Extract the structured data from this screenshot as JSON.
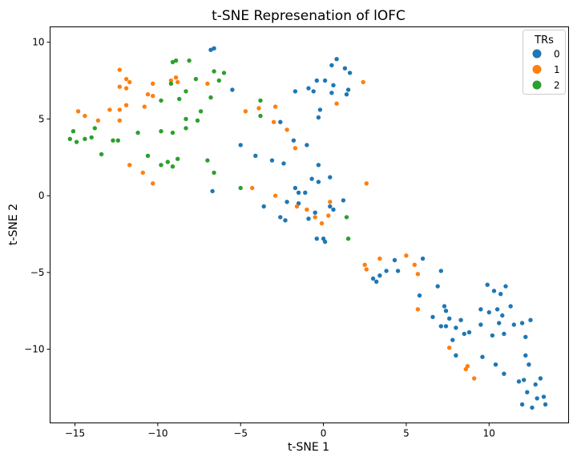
{
  "chart_data": {
    "type": "scatter",
    "title": "t-SNE Represenation of lOFC",
    "xlabel": "t-SNE 1",
    "ylabel": "t-SNE 2",
    "xlim": [
      -16.5,
      14.8
    ],
    "ylim": [
      -14.8,
      11
    ],
    "xticks": [
      -15,
      -10,
      -5,
      0,
      5,
      10
    ],
    "xtick_labels": [
      "−15",
      "−10",
      "−5",
      "0",
      "5",
      "10"
    ],
    "yticks": [
      10,
      5,
      0,
      -5,
      -10
    ],
    "ytick_labels": [
      "10",
      "5",
      "0",
      "−5",
      "−10"
    ],
    "grid": false,
    "legend": {
      "title": "TRs",
      "placement": "top-right"
    },
    "series": [
      {
        "name": "0",
        "color": "#1f77b4",
        "points": [
          [
            -6.8,
            9.5
          ],
          [
            -6.6,
            9.6
          ],
          [
            -5.5,
            6.9
          ],
          [
            -6.7,
            0.3
          ],
          [
            -1.7,
            6.8
          ],
          [
            -0.9,
            7.0
          ],
          [
            -0.6,
            6.8
          ],
          [
            -0.4,
            7.5
          ],
          [
            -0.2,
            5.6
          ],
          [
            -0.3,
            5.1
          ],
          [
            0.1,
            7.5
          ],
          [
            0.5,
            8.5
          ],
          [
            0.8,
            8.9
          ],
          [
            0.6,
            7.2
          ],
          [
            0.5,
            6.7
          ],
          [
            1.3,
            8.3
          ],
          [
            1.6,
            8.0
          ],
          [
            1.4,
            6.6
          ],
          [
            1.5,
            6.9
          ],
          [
            -5.0,
            3.3
          ],
          [
            -4.1,
            2.6
          ],
          [
            -3.1,
            2.3
          ],
          [
            -2.6,
            4.8
          ],
          [
            -2.4,
            2.1
          ],
          [
            -1.8,
            3.6
          ],
          [
            -1.0,
            3.3
          ],
          [
            -0.7,
            1.1
          ],
          [
            -0.3,
            2.0
          ],
          [
            -0.3,
            0.9
          ],
          [
            0.4,
            1.2
          ],
          [
            -3.6,
            -0.7
          ],
          [
            -2.6,
            -1.4
          ],
          [
            -2.3,
            -1.6
          ],
          [
            -1.7,
            0.5
          ],
          [
            -1.5,
            0.2
          ],
          [
            -1.5,
            -0.5
          ],
          [
            -2.2,
            -0.4
          ],
          [
            -1.1,
            0.2
          ],
          [
            -0.9,
            -1.5
          ],
          [
            -0.5,
            -1.1
          ],
          [
            -0.4,
            -2.8
          ],
          [
            0.0,
            -2.8
          ],
          [
            0.1,
            -3.0
          ],
          [
            0.4,
            -0.7
          ],
          [
            0.6,
            -0.9
          ],
          [
            1.2,
            -0.3
          ],
          [
            3.0,
            -5.4
          ],
          [
            3.2,
            -5.6
          ],
          [
            3.4,
            -5.2
          ],
          [
            3.8,
            -4.9
          ],
          [
            4.3,
            -4.2
          ],
          [
            4.5,
            -4.9
          ],
          [
            6.0,
            -4.1
          ],
          [
            5.8,
            -6.5
          ],
          [
            6.6,
            -7.9
          ],
          [
            6.9,
            -5.9
          ],
          [
            7.1,
            -4.9
          ],
          [
            7.3,
            -7.2
          ],
          [
            7.4,
            -7.5
          ],
          [
            7.1,
            -8.5
          ],
          [
            7.4,
            -8.5
          ],
          [
            7.6,
            -8.0
          ],
          [
            7.8,
            -9.4
          ],
          [
            8.0,
            -8.6
          ],
          [
            8.0,
            -10.4
          ],
          [
            8.3,
            -8.1
          ],
          [
            8.5,
            -9.0
          ],
          [
            8.8,
            -8.9
          ],
          [
            9.5,
            -8.4
          ],
          [
            9.5,
            -7.4
          ],
          [
            9.6,
            -10.5
          ],
          [
            9.9,
            -5.8
          ],
          [
            10.0,
            -7.6
          ],
          [
            10.2,
            -9.1
          ],
          [
            10.3,
            -6.2
          ],
          [
            10.4,
            -11.0
          ],
          [
            10.5,
            -7.4
          ],
          [
            10.6,
            -8.3
          ],
          [
            10.7,
            -6.4
          ],
          [
            10.8,
            -7.8
          ],
          [
            10.9,
            -9.0
          ],
          [
            11.0,
            -5.9
          ],
          [
            10.9,
            -11.6
          ],
          [
            11.3,
            -7.2
          ],
          [
            11.5,
            -8.4
          ],
          [
            12.0,
            -8.3
          ],
          [
            11.8,
            -12.1
          ],
          [
            12.0,
            -13.6
          ],
          [
            12.1,
            -12.0
          ],
          [
            12.2,
            -9.2
          ],
          [
            12.2,
            -10.4
          ],
          [
            12.3,
            -12.8
          ],
          [
            12.4,
            -11.0
          ],
          [
            12.5,
            -8.1
          ],
          [
            12.6,
            -13.8
          ],
          [
            12.8,
            -12.3
          ],
          [
            12.9,
            -13.2
          ],
          [
            13.1,
            -11.9
          ],
          [
            13.3,
            -13.1
          ],
          [
            13.4,
            -13.6
          ]
        ]
      },
      {
        "name": "1",
        "color": "#ff7f0e",
        "points": [
          [
            -12.3,
            8.2
          ],
          [
            -11.9,
            7.6
          ],
          [
            -11.7,
            7.4
          ],
          [
            -12.3,
            7.1
          ],
          [
            -11.9,
            7.0
          ],
          [
            -10.6,
            6.6
          ],
          [
            -10.3,
            7.3
          ],
          [
            -10.3,
            6.5
          ],
          [
            -9.2,
            7.5
          ],
          [
            -8.9,
            7.7
          ],
          [
            -8.8,
            7.4
          ],
          [
            -7.0,
            7.3
          ],
          [
            -14.8,
            5.5
          ],
          [
            -14.4,
            5.2
          ],
          [
            -13.6,
            4.9
          ],
          [
            -12.9,
            5.6
          ],
          [
            -12.3,
            5.6
          ],
          [
            -11.9,
            5.9
          ],
          [
            -10.8,
            5.8
          ],
          [
            -12.3,
            4.9
          ],
          [
            -11.7,
            2.0
          ],
          [
            -10.9,
            1.5
          ],
          [
            -10.3,
            0.8
          ],
          [
            -4.7,
            5.5
          ],
          [
            -3.9,
            5.7
          ],
          [
            -2.9,
            5.8
          ],
          [
            -3.0,
            4.8
          ],
          [
            -2.2,
            4.3
          ],
          [
            -1.7,
            3.1
          ],
          [
            -4.3,
            0.5
          ],
          [
            -2.9,
            0.0
          ],
          [
            -1.6,
            -0.7
          ],
          [
            -1.0,
            -0.9
          ],
          [
            -0.5,
            -1.4
          ],
          [
            -0.1,
            -1.8
          ],
          [
            0.3,
            -1.3
          ],
          [
            0.4,
            -0.4
          ],
          [
            0.8,
            6.0
          ],
          [
            2.4,
            7.4
          ],
          [
            2.6,
            0.8
          ],
          [
            2.5,
            -4.5
          ],
          [
            2.6,
            -4.8
          ],
          [
            3.4,
            -4.1
          ],
          [
            5.0,
            -3.9
          ],
          [
            5.5,
            -4.5
          ],
          [
            5.7,
            -5.1
          ],
          [
            5.7,
            -7.4
          ],
          [
            7.6,
            -9.9
          ],
          [
            8.7,
            -11.1
          ],
          [
            8.6,
            -11.3
          ],
          [
            9.1,
            -11.9
          ]
        ]
      },
      {
        "name": "2",
        "color": "#2ca02c",
        "points": [
          [
            -9.1,
            8.7
          ],
          [
            -8.9,
            8.8
          ],
          [
            -8.1,
            8.8
          ],
          [
            -6.6,
            8.1
          ],
          [
            -6.0,
            8.0
          ],
          [
            -7.7,
            7.6
          ],
          [
            -6.3,
            7.5
          ],
          [
            -9.2,
            7.3
          ],
          [
            -8.3,
            6.8
          ],
          [
            -6.8,
            6.4
          ],
          [
            -7.4,
            5.5
          ],
          [
            -9.8,
            6.2
          ],
          [
            -8.7,
            6.3
          ],
          [
            -8.3,
            5.0
          ],
          [
            -7.6,
            4.9
          ],
          [
            -8.3,
            4.4
          ],
          [
            -9.1,
            4.1
          ],
          [
            -9.8,
            4.2
          ],
          [
            -11.2,
            4.1
          ],
          [
            -12.7,
            3.6
          ],
          [
            -12.4,
            3.6
          ],
          [
            -14.0,
            3.8
          ],
          [
            -14.4,
            3.7
          ],
          [
            -14.9,
            3.5
          ],
          [
            -15.3,
            3.7
          ],
          [
            -15.1,
            4.2
          ],
          [
            -13.8,
            4.4
          ],
          [
            -13.4,
            2.7
          ],
          [
            -10.6,
            2.6
          ],
          [
            -9.8,
            2.0
          ],
          [
            -9.4,
            2.2
          ],
          [
            -9.1,
            1.9
          ],
          [
            -8.8,
            2.4
          ],
          [
            -7.0,
            2.3
          ],
          [
            -6.6,
            1.5
          ],
          [
            -3.8,
            6.2
          ],
          [
            -3.8,
            5.2
          ],
          [
            -5.0,
            0.5
          ],
          [
            1.4,
            -1.4
          ],
          [
            1.5,
            -2.8
          ]
        ]
      }
    ]
  }
}
